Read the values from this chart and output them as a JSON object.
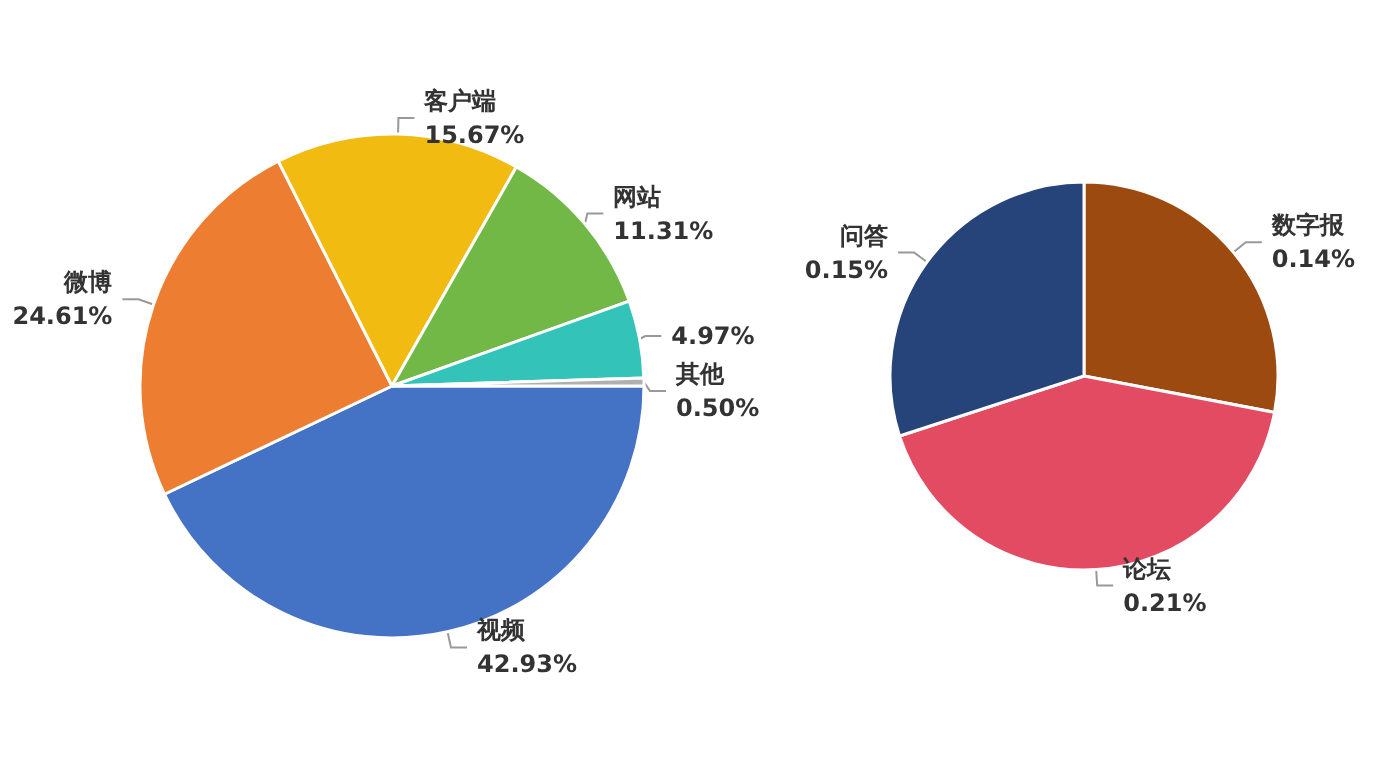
{
  "chart_data": [
    {
      "type": "pie",
      "categories": [
        "视频",
        "微博",
        "客户端",
        "网站",
        null,
        "其他"
      ],
      "values": [
        42.93,
        24.61,
        15.67,
        11.31,
        4.97,
        0.5
      ],
      "colors": [
        "#4472c4",
        "#ed7d31",
        "#f2bb12",
        "#72b846",
        "#33c3b8",
        "#b0b0b0"
      ],
      "value_labels": [
        "42.93%",
        "24.61%",
        "15.67%",
        "11.31%",
        "4.97%",
        "0.50%"
      ]
    },
    {
      "type": "pie",
      "categories": [
        "数字报",
        "论坛",
        "问答"
      ],
      "values": [
        0.14,
        0.21,
        0.15
      ],
      "colors": [
        "#9c4a10",
        "#e24b62",
        "#26437a"
      ],
      "value_labels": [
        "0.14%",
        "0.21%",
        "0.15%"
      ]
    }
  ]
}
